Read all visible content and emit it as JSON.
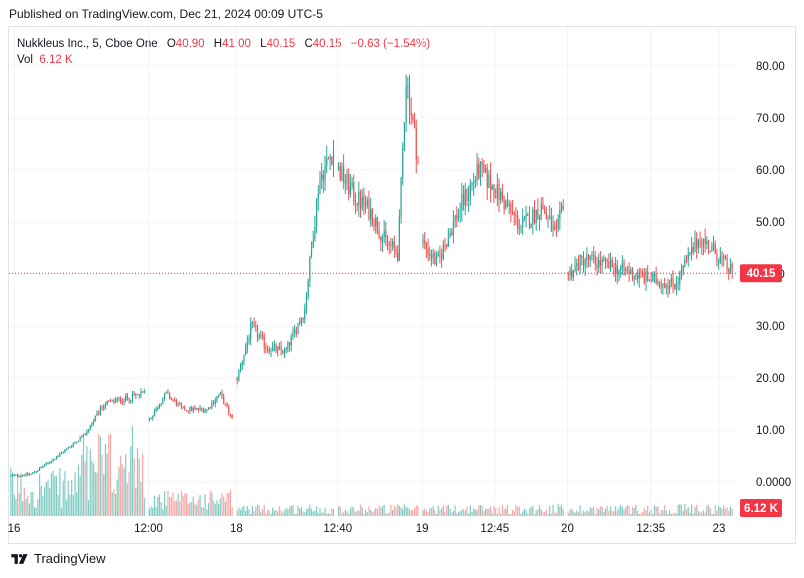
{
  "header": {
    "published": "Published on TradingView.com, Dec 21, 2024 00:09 UTC-5"
  },
  "legend": {
    "symbol": "Nukkleus Inc., 5, Cboe One",
    "o_label": "O",
    "o_value": "40.90",
    "h_label": "H",
    "h_value": "41.00",
    "l_label": "L",
    "l_value": "40.15",
    "c_label": "C",
    "c_value": "40.15",
    "change": "−0.63 (−1.54%)",
    "vol_label": "Vol",
    "vol_value": "6.12 K"
  },
  "colors": {
    "up": "#26a69a",
    "down": "#ef5350",
    "up_vol": "#80cbc4",
    "down_vol": "#f7a9a7",
    "last_price": "#f23645",
    "grid": "#f0f3fa"
  },
  "footer": {
    "brand": "TradingView"
  },
  "chart_data": {
    "type": "candlestick",
    "x_ticks": [
      "16",
      "12:00",
      "18",
      "12:40",
      "19",
      "12:45",
      "20",
      "12:35",
      "23"
    ],
    "y_ticks": [
      "80.00",
      "70.00",
      "60.00",
      "50.00",
      "40.00",
      "30.00",
      "20.00",
      "10.00",
      "0.0000"
    ],
    "ylim": [
      0,
      83
    ],
    "last_price": 40.15,
    "last_price_label": "40.15",
    "volume_label": "6.12 K",
    "grid": true,
    "segments": [
      {
        "day": "16",
        "candles": 80,
        "start": 1.2,
        "waypoints": [
          [
            0,
            1.2
          ],
          [
            0.15,
            1.5
          ],
          [
            0.3,
            4
          ],
          [
            0.45,
            7
          ],
          [
            0.55,
            9
          ],
          [
            0.7,
            15
          ],
          [
            0.85,
            16
          ],
          [
            1,
            17
          ]
        ]
      },
      {
        "day": "16 (12:00)",
        "candles": 50,
        "start": 12,
        "waypoints": [
          [
            0,
            12
          ],
          [
            0.2,
            17
          ],
          [
            0.4,
            14
          ],
          [
            0.7,
            14
          ],
          [
            0.85,
            17
          ],
          [
            1,
            12
          ]
        ]
      },
      {
        "day": "18",
        "candles": 58,
        "start": 20,
        "waypoints": [
          [
            0,
            20
          ],
          [
            0.15,
            30
          ],
          [
            0.3,
            26
          ],
          [
            0.5,
            25
          ],
          [
            0.7,
            33
          ],
          [
            0.85,
            58
          ],
          [
            1,
            64
          ]
        ]
      },
      {
        "day": "18 (12:40)",
        "candles": 48,
        "start": 60,
        "waypoints": [
          [
            0,
            60
          ],
          [
            0.2,
            55
          ],
          [
            0.4,
            52
          ],
          [
            0.6,
            46
          ],
          [
            0.75,
            44
          ],
          [
            0.85,
            78
          ],
          [
            1,
            62
          ]
        ]
      },
      {
        "day": "19",
        "candles": 84,
        "start": 46,
        "waypoints": [
          [
            0,
            46
          ],
          [
            0.1,
            42
          ],
          [
            0.25,
            52
          ],
          [
            0.4,
            60
          ],
          [
            0.55,
            55
          ],
          [
            0.7,
            49
          ],
          [
            0.85,
            53
          ],
          [
            0.95,
            47
          ],
          [
            1,
            54
          ]
        ]
      },
      {
        "day": "20",
        "candles": 98,
        "start": 40,
        "waypoints": [
          [
            0,
            40
          ],
          [
            0.1,
            43
          ],
          [
            0.3,
            41
          ],
          [
            0.5,
            39
          ],
          [
            0.65,
            38
          ],
          [
            0.8,
            47
          ],
          [
            0.9,
            44
          ],
          [
            1,
            40.15
          ]
        ]
      }
    ]
  }
}
